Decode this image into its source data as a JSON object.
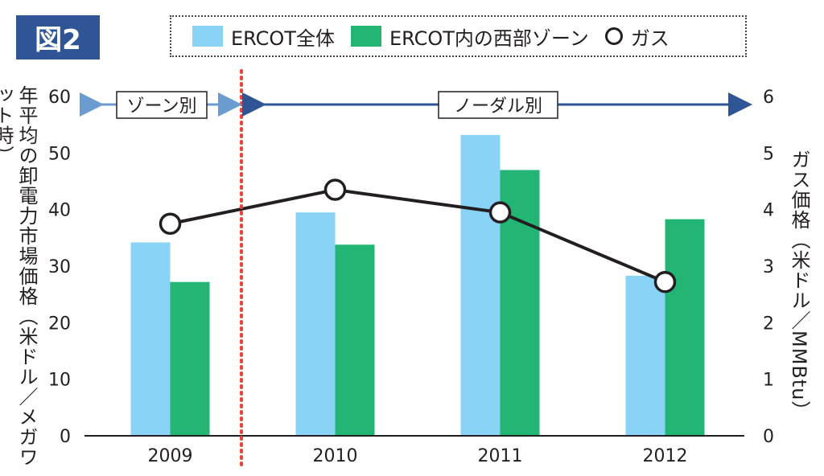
{
  "figure_label": "図2",
  "legend": {
    "ercot_all": "ERCOT全体",
    "ercot_west": "ERCOT内の西部ゾーン",
    "gas": "ガス"
  },
  "colors": {
    "ercot_all": "#89d4f6",
    "ercot_west": "#22b573",
    "gas_line": "#231f20",
    "badge": "#2f5597",
    "zonal_arrow": "#6a9bd1",
    "nodal_arrow": "#2f5597",
    "divider": "#e8443a"
  },
  "annotations": {
    "zonal": "ゾーン別",
    "nodal": "ノーダル別"
  },
  "chart_data": {
    "type": "bar",
    "categories": [
      "2009",
      "2010",
      "2011",
      "2012"
    ],
    "series": [
      {
        "name": "ERCOT全体",
        "values": [
          34.2,
          39.5,
          53.2,
          28.3
        ]
      },
      {
        "name": "ERCOT内の西部ゾーン",
        "values": [
          27.2,
          33.8,
          47.0,
          38.3
        ]
      }
    ],
    "line_series": {
      "name": "ガス",
      "values": [
        3.75,
        4.35,
        3.95,
        2.72
      ],
      "axis": "right"
    },
    "ylabel_left": "年平均の卸電力市場価格（米ドル／メガワット時）",
    "ylabel_right": "ガス価格（米ドル／MMBtu）",
    "ylim_left": [
      0,
      60
    ],
    "ylim_right": [
      0,
      6
    ],
    "yticks_left": [
      "0",
      "10",
      "20",
      "30",
      "40",
      "50",
      "60"
    ],
    "yticks_right": [
      "0",
      "1",
      "2",
      "3",
      "4",
      "5",
      "6"
    ],
    "grid": false
  }
}
